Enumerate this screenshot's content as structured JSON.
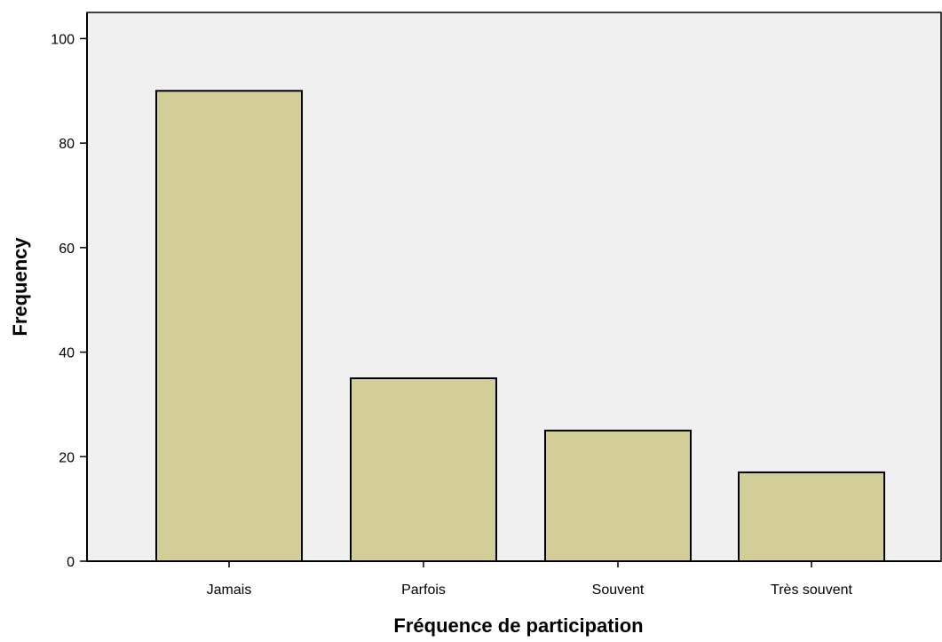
{
  "chart_data": {
    "type": "bar",
    "title": "",
    "xlabel": "Fréquence de participation",
    "ylabel": "Frequency",
    "categories": [
      "Jamais",
      "Parfois",
      "Souvent",
      "Très souvent"
    ],
    "values": [
      90,
      35,
      25,
      17
    ],
    "ylim": [
      0,
      105
    ],
    "yticks": [
      0,
      20,
      40,
      60,
      80,
      100
    ],
    "grid": false,
    "legend": "none",
    "colors": {
      "plot_background": "#f0f0f0",
      "bar_fill": "#d3ce97",
      "bar_stroke": "#000000",
      "axis": "#000000"
    }
  }
}
